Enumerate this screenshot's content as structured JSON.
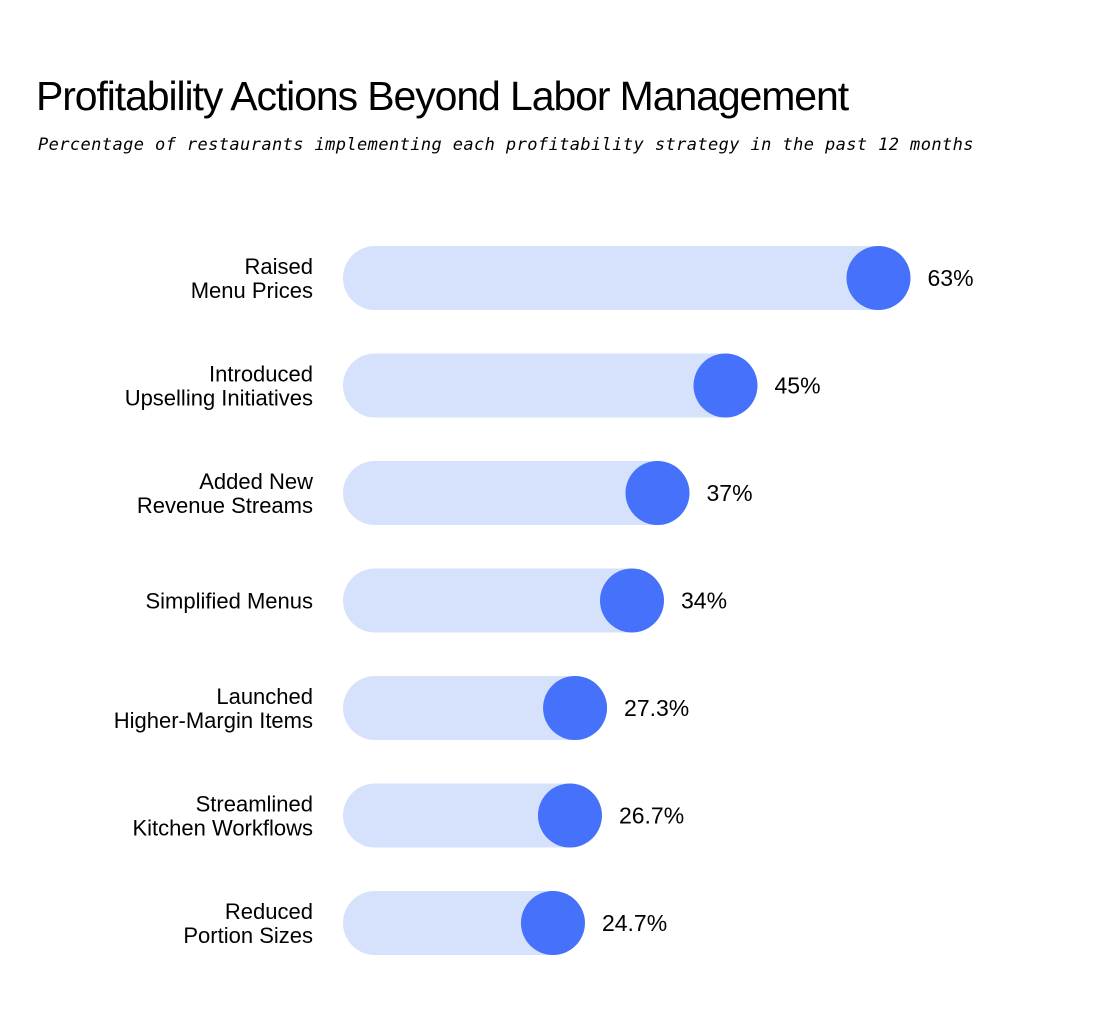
{
  "chart_data": {
    "type": "bar",
    "orientation": "horizontal",
    "title": "Profitability Actions Beyond Labor Management",
    "subtitle": "Percentage of restaurants implementing each profitability strategy in the past 12 months",
    "categories": [
      [
        "Raised",
        "Menu Prices"
      ],
      [
        "Introduced",
        "Upselling Initiatives"
      ],
      [
        "Added New",
        "Revenue Streams"
      ],
      [
        "Simplified Menus"
      ],
      [
        "Launched",
        "Higher-Margin Items"
      ],
      [
        "Streamlined",
        "Kitchen Workflows"
      ],
      [
        "Reduced",
        "Portion Sizes"
      ]
    ],
    "values": [
      63,
      45,
      37,
      34,
      27.3,
      26.7,
      24.7
    ],
    "value_labels": [
      "63%",
      "45%",
      "37%",
      "34%",
      "27.3%",
      "26.7%",
      "24.7%"
    ],
    "unit": "%",
    "colors": {
      "track": "#d6e1fb",
      "marker": "#4571fb",
      "text": "#000000"
    },
    "grid": false,
    "legend": "none"
  }
}
